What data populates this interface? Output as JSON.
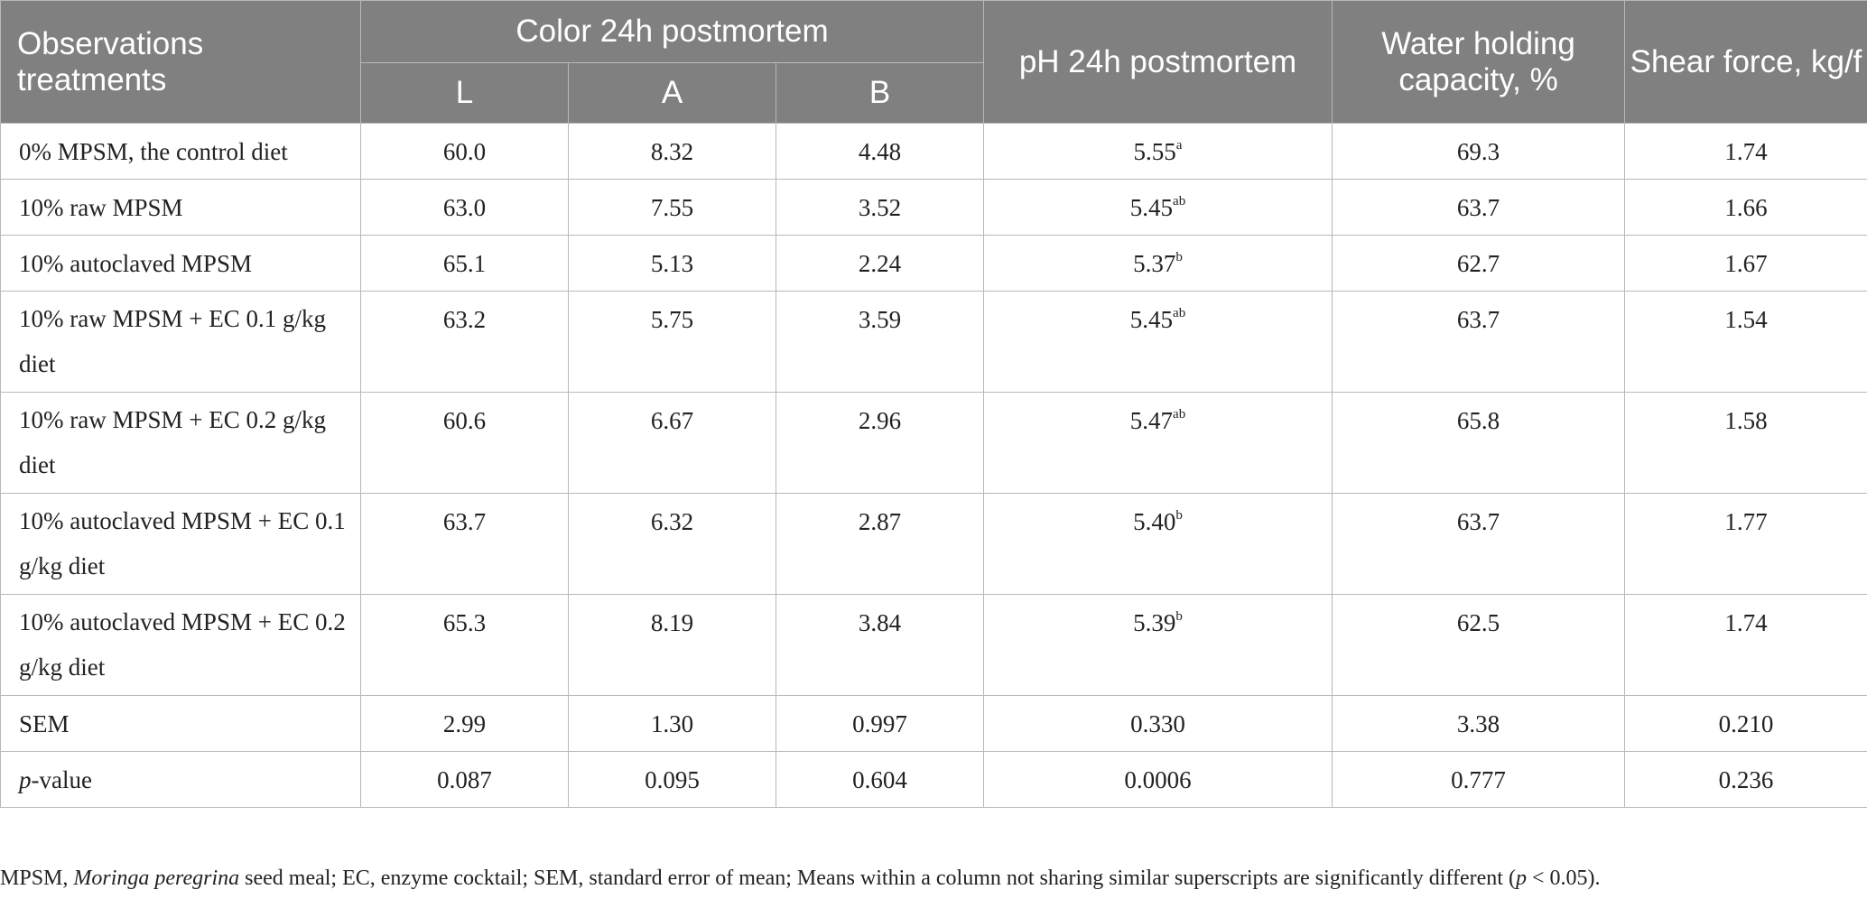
{
  "header": {
    "treatments": "Observations treatments",
    "color_group": "Color 24h postmortem",
    "color_L": "L",
    "color_A": "A",
    "color_B": "B",
    "ph": "pH 24h postmortem",
    "whc": "Water holding capacity, %",
    "shear": "Shear force, kg/f"
  },
  "rows": [
    {
      "name": "0% MPSM, the control diet",
      "L": "60.0",
      "A": "8.32",
      "B": "4.48",
      "ph": "5.55",
      "ph_sup": "a",
      "whc": "69.3",
      "shear": "1.74"
    },
    {
      "name": "10% raw MPSM",
      "L": "63.0",
      "A": "7.55",
      "B": "3.52",
      "ph": "5.45",
      "ph_sup": "ab",
      "whc": "63.7",
      "shear": "1.66"
    },
    {
      "name": "10% autoclaved MPSM",
      "L": "65.1",
      "A": "5.13",
      "B": "2.24",
      "ph": "5.37",
      "ph_sup": "b",
      "whc": "62.7",
      "shear": "1.67"
    },
    {
      "name": "10% raw MPSM + EC 0.1 g/kg diet",
      "L": "63.2",
      "A": "5.75",
      "B": "3.59",
      "ph": "5.45",
      "ph_sup": "ab",
      "whc": "63.7",
      "shear": "1.54"
    },
    {
      "name": "10% raw MPSM + EC 0.2 g/kg diet",
      "L": "60.6",
      "A": "6.67",
      "B": "2.96",
      "ph": "5.47",
      "ph_sup": "ab",
      "whc": "65.8",
      "shear": "1.58"
    },
    {
      "name": "10% autoclaved MPSM + EC 0.1 g/kg diet",
      "L": "63.7",
      "A": "6.32",
      "B": "2.87",
      "ph": "5.40",
      "ph_sup": "b",
      "whc": "63.7",
      "shear": "1.77"
    },
    {
      "name": "10% autoclaved MPSM + EC 0.2 g/kg diet",
      "L": "65.3",
      "A": "8.19",
      "B": "3.84",
      "ph": "5.39",
      "ph_sup": "b",
      "whc": "62.5",
      "shear": "1.74"
    },
    {
      "name": "SEM",
      "L": "2.99",
      "A": "1.30",
      "B": "0.997",
      "ph": "0.330",
      "ph_sup": "",
      "whc": "3.38",
      "shear": "0.210"
    },
    {
      "name_italic": "p",
      "name": "-value",
      "L": "0.087",
      "A": "0.095",
      "B": "0.604",
      "ph": "0.0006",
      "ph_sup": "",
      "whc": "0.777",
      "shear": "0.236"
    }
  ],
  "footnote": {
    "part1": "MPSM, ",
    "italic1": "Moringa peregrina",
    "part2": " seed meal; EC, enzyme cocktail; SEM, standard error of mean; Means within a column not sharing similar superscripts are significantly different (",
    "italic2": "p",
    "part3": " < 0.05)."
  }
}
